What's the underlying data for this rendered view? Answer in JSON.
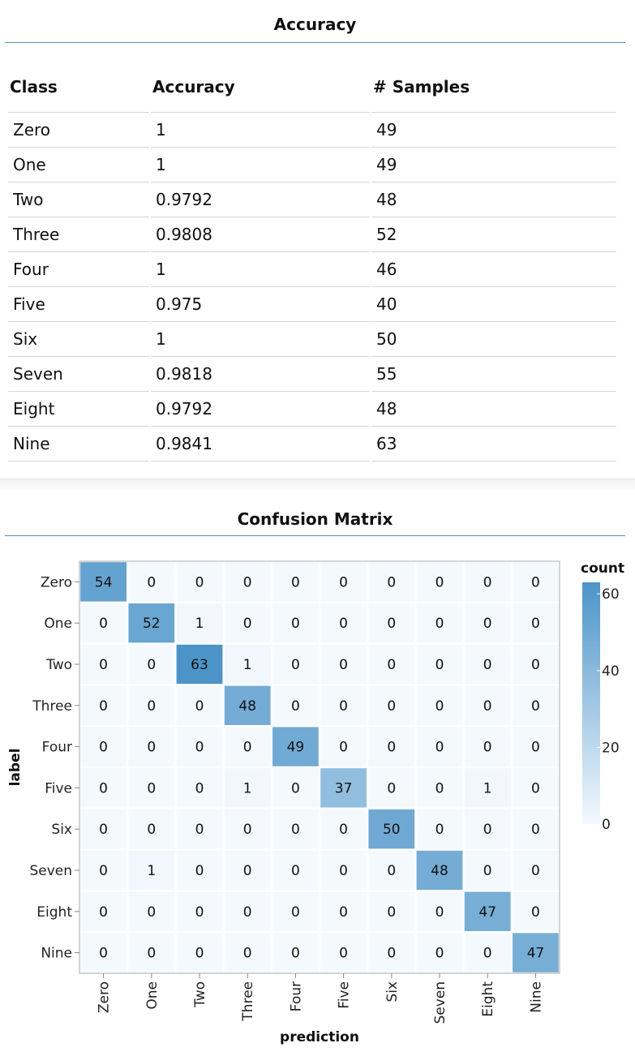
{
  "accuracy_panel": {
    "title": "Accuracy",
    "columns": [
      "Class",
      "Accuracy",
      "# Samples"
    ],
    "rows": [
      [
        "Zero",
        "1",
        "49"
      ],
      [
        "One",
        "1",
        "49"
      ],
      [
        "Two",
        "0.9792",
        "48"
      ],
      [
        "Three",
        "0.9808",
        "52"
      ],
      [
        "Four",
        "1",
        "46"
      ],
      [
        "Five",
        "0.975",
        "40"
      ],
      [
        "Six",
        "1",
        "50"
      ],
      [
        "Seven",
        "0.9818",
        "55"
      ],
      [
        "Eight",
        "0.9792",
        "48"
      ],
      [
        "Nine",
        "0.9841",
        "63"
      ]
    ]
  },
  "confusion_panel": {
    "title": "Confusion Matrix"
  },
  "chart_data": {
    "type": "heatmap",
    "xlabel": "prediction",
    "ylabel": "label",
    "x_categories": [
      "Zero",
      "One",
      "Two",
      "Three",
      "Four",
      "Five",
      "Six",
      "Seven",
      "Eight",
      "Nine"
    ],
    "y_categories": [
      "Zero",
      "One",
      "Two",
      "Three",
      "Four",
      "Five",
      "Six",
      "Seven",
      "Eight",
      "Nine"
    ],
    "values": [
      [
        54,
        0,
        0,
        0,
        0,
        0,
        0,
        0,
        0,
        0
      ],
      [
        0,
        52,
        1,
        0,
        0,
        0,
        0,
        0,
        0,
        0
      ],
      [
        0,
        0,
        63,
        1,
        0,
        0,
        0,
        0,
        0,
        0
      ],
      [
        0,
        0,
        0,
        48,
        0,
        0,
        0,
        0,
        0,
        0
      ],
      [
        0,
        0,
        0,
        0,
        49,
        0,
        0,
        0,
        0,
        0
      ],
      [
        0,
        0,
        0,
        1,
        0,
        37,
        0,
        0,
        1,
        0
      ],
      [
        0,
        0,
        0,
        0,
        0,
        0,
        50,
        0,
        0,
        0
      ],
      [
        0,
        1,
        0,
        0,
        0,
        0,
        0,
        48,
        0,
        0
      ],
      [
        0,
        0,
        0,
        0,
        0,
        0,
        0,
        0,
        47,
        0
      ],
      [
        0,
        0,
        0,
        0,
        0,
        0,
        0,
        0,
        0,
        47
      ]
    ],
    "legend": {
      "title": "count",
      "ticks": [
        0,
        20,
        40,
        60
      ],
      "domain": [
        0,
        63
      ],
      "position": "right"
    },
    "colors": {
      "low": "#f4f9fe",
      "high": "#4c94c8"
    }
  }
}
